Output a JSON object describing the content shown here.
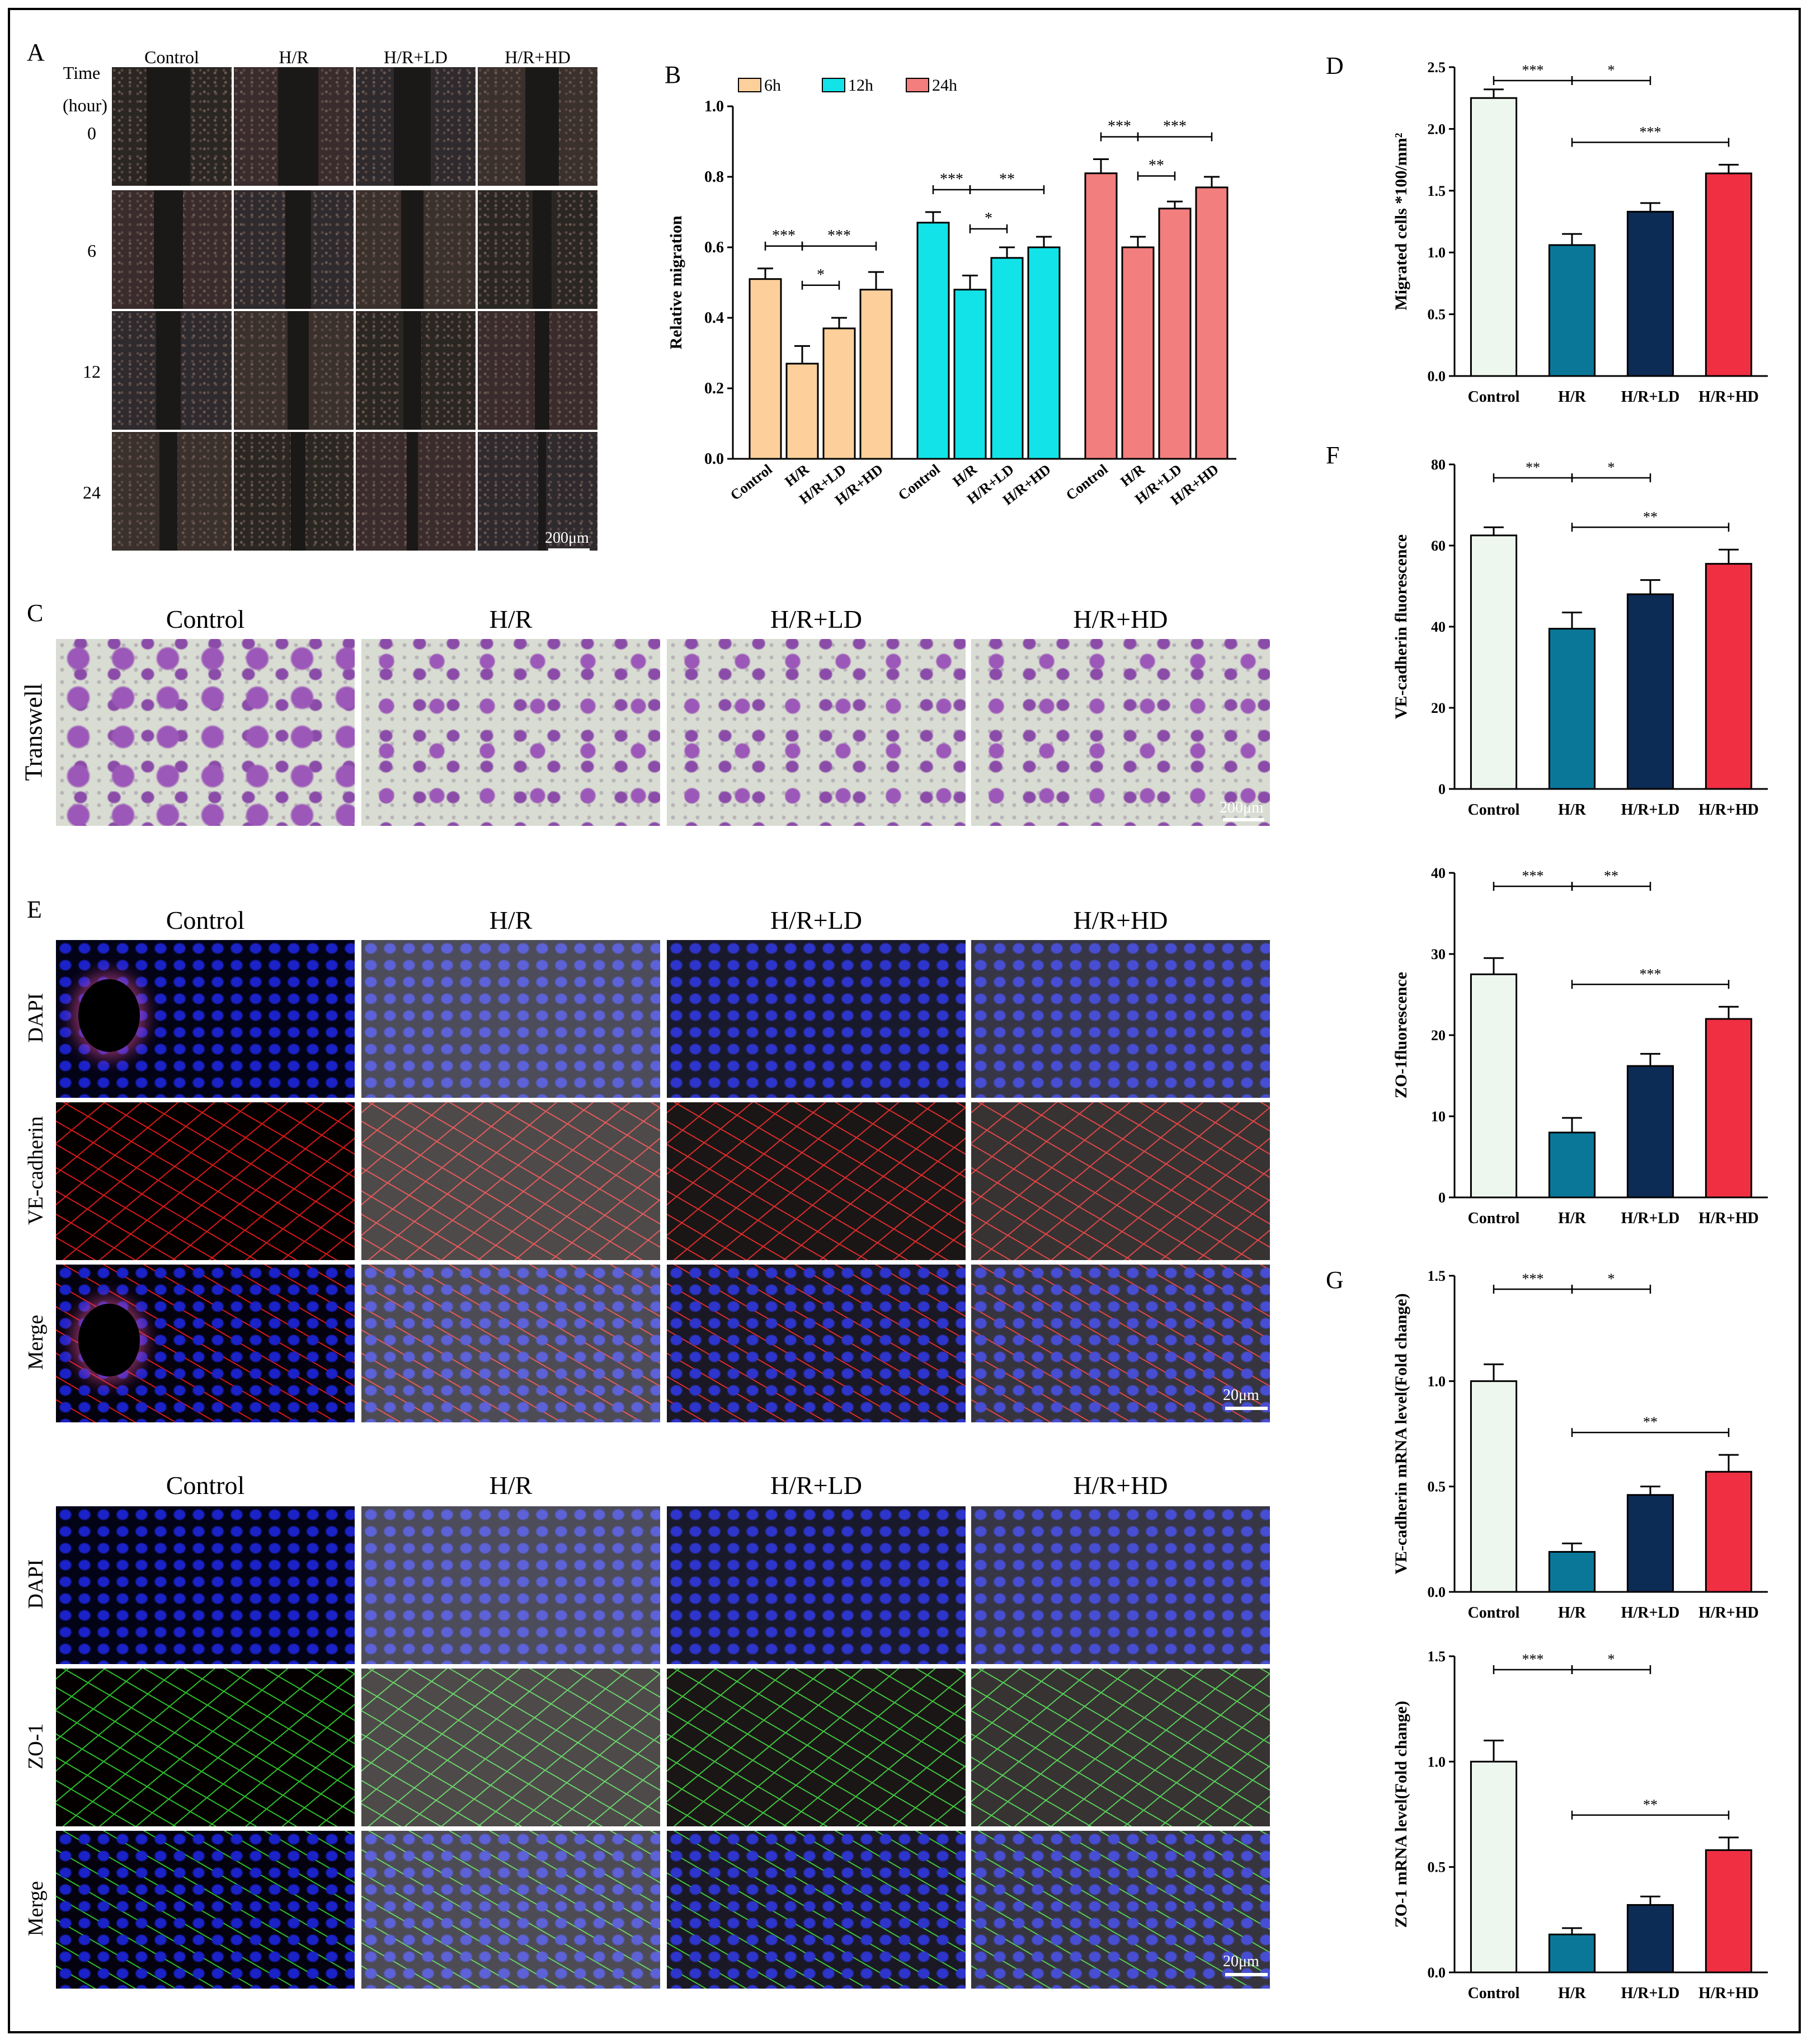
{
  "panels": {
    "A": "A",
    "B": "B",
    "C": "C",
    "D": "D",
    "E": "E",
    "F": "F",
    "G": "G"
  },
  "groups": [
    "Control",
    "H/R",
    "H/R+LD",
    "H/R+HD"
  ],
  "panel_a": {
    "time_label": "Time",
    "hour_label": "(hour)",
    "rows": [
      "0",
      "6",
      "12",
      "24"
    ],
    "scale": "200μm"
  },
  "panel_c": {
    "row_label": "Transwell",
    "scale": "200μm"
  },
  "panel_e": {
    "row_labels_top": [
      "DAPI",
      "VE-cadherin",
      "Merge"
    ],
    "row_labels_bottom": [
      "DAPI",
      "ZO-1",
      "Merge"
    ],
    "scale": "20μm",
    "colors": {
      "dapi": "#1a22c8",
      "vecad": "#c81414",
      "zo1": "#1fa31f",
      "dark": "#000000"
    }
  },
  "wound_colors": [
    "#2a2622",
    "#3a2c2c",
    "#2e2a2e",
    "#3a302c"
  ],
  "bar_colors": {
    "control": "#eef7ee",
    "hr": "#0a7799",
    "ld": "#0c2b55",
    "hd": "#f02f42",
    "b6": "#fccf9b",
    "b12": "#12e3e8",
    "b24": "#f27e7d"
  },
  "chart_data": [
    {
      "id": "B",
      "type": "bar",
      "ylabel": "Relative migration",
      "ylim": [
        0,
        1.0
      ],
      "yticks": [
        "0.0",
        "0.2",
        "0.4",
        "0.6",
        "0.8",
        "1.0"
      ],
      "categories": [
        "Control",
        "H/R",
        "H/R+LD",
        "H/R+HD"
      ],
      "legend": "top",
      "series": [
        {
          "name": "6h",
          "values": [
            0.51,
            0.27,
            0.37,
            0.48
          ],
          "errors": [
            0.03,
            0.05,
            0.03,
            0.05
          ],
          "color": "#fccf9b"
        },
        {
          "name": "12h",
          "values": [
            0.67,
            0.48,
            0.57,
            0.6
          ],
          "errors": [
            0.03,
            0.04,
            0.03,
            0.03
          ],
          "color": "#12e3e8"
        },
        {
          "name": "24h",
          "values": [
            0.81,
            0.6,
            0.71,
            0.77
          ],
          "errors": [
            0.04,
            0.03,
            0.02,
            0.03
          ],
          "color": "#f27e7d"
        }
      ],
      "significance": [
        {
          "label": "***",
          "group": 0
        },
        {
          "label": "***",
          "group": 0
        },
        {
          "label": "*",
          "group": 0
        },
        {
          "label": "***",
          "group": 1
        },
        {
          "label": "**",
          "group": 1
        },
        {
          "label": "*",
          "group": 1
        },
        {
          "label": "***",
          "group": 2
        },
        {
          "label": "***",
          "group": 2
        },
        {
          "label": "**",
          "group": 2
        }
      ]
    },
    {
      "id": "D",
      "type": "bar",
      "ylabel": "Migrated cells *100/mm²",
      "ylim": [
        0,
        2.5
      ],
      "yticks": [
        "0.0",
        "0.5",
        "1.0",
        "1.5",
        "2.0",
        "2.5"
      ],
      "categories": [
        "Control",
        "H/R",
        "H/R+LD",
        "H/R+HD"
      ],
      "values": [
        2.25,
        1.06,
        1.33,
        1.64
      ],
      "errors": [
        0.07,
        0.09,
        0.07,
        0.07
      ],
      "significance": [
        {
          "label": "***",
          "from": 0,
          "to": 1,
          "level": 0
        },
        {
          "label": "*",
          "from": 1,
          "to": 2,
          "level": 0
        },
        {
          "label": "***",
          "from": 1,
          "to": 3,
          "level": 1
        }
      ]
    },
    {
      "id": "F1",
      "type": "bar",
      "ylabel": "VE-cadherin fluorescence",
      "ylim": [
        0,
        80
      ],
      "yticks": [
        "0",
        "20",
        "40",
        "60",
        "80"
      ],
      "categories": [
        "Control",
        "H/R",
        "H/R+LD",
        "H/R+HD"
      ],
      "values": [
        62.5,
        39.5,
        48.0,
        55.5
      ],
      "errors": [
        2.0,
        4.0,
        3.5,
        3.5
      ],
      "significance": [
        {
          "label": "**",
          "from": 0,
          "to": 1,
          "level": 0
        },
        {
          "label": "*",
          "from": 1,
          "to": 2,
          "level": 0
        },
        {
          "label": "**",
          "from": 1,
          "to": 3,
          "level": 1
        }
      ]
    },
    {
      "id": "F2",
      "type": "bar",
      "ylabel": "ZO-1fluorescence",
      "ylim": [
        0,
        40
      ],
      "yticks": [
        "0",
        "10",
        "20",
        "30",
        "40"
      ],
      "categories": [
        "Control",
        "H/R",
        "H/R+LD",
        "H/R+HD"
      ],
      "values": [
        27.5,
        8.0,
        16.2,
        22.0
      ],
      "errors": [
        2.0,
        1.8,
        1.5,
        1.5
      ],
      "significance": [
        {
          "label": "***",
          "from": 0,
          "to": 1,
          "level": 0
        },
        {
          "label": "**",
          "from": 1,
          "to": 2,
          "level": 0
        },
        {
          "label": "***",
          "from": 1,
          "to": 3,
          "level": 1
        }
      ]
    },
    {
      "id": "G1",
      "type": "bar",
      "ylabel": "VE-cadherin mRNA level(Fold change)",
      "ylim": [
        0,
        1.5
      ],
      "yticks": [
        "0.0",
        "0.5",
        "1.0",
        "1.5"
      ],
      "categories": [
        "Control",
        "H/R",
        "H/R+LD",
        "H/R+HD"
      ],
      "values": [
        1.0,
        0.19,
        0.46,
        0.57
      ],
      "errors": [
        0.08,
        0.04,
        0.04,
        0.08
      ],
      "significance": [
        {
          "label": "***",
          "from": 0,
          "to": 1,
          "level": 0
        },
        {
          "label": "*",
          "from": 1,
          "to": 2,
          "level": 0
        },
        {
          "label": "**",
          "from": 1,
          "to": 3,
          "level": 1
        }
      ]
    },
    {
      "id": "G2",
      "type": "bar",
      "ylabel": "ZO-1 mRNA level(Fold change)",
      "ylim": [
        0,
        1.5
      ],
      "yticks": [
        "0.0",
        "0.5",
        "1.0",
        "1.5"
      ],
      "categories": [
        "Control",
        "H/R",
        "H/R+LD",
        "H/R+HD"
      ],
      "values": [
        1.0,
        0.18,
        0.32,
        0.58
      ],
      "errors": [
        0.1,
        0.03,
        0.04,
        0.06
      ],
      "significance": [
        {
          "label": "***",
          "from": 0,
          "to": 1,
          "level": 0
        },
        {
          "label": "*",
          "from": 1,
          "to": 2,
          "level": 0
        },
        {
          "label": "**",
          "from": 1,
          "to": 3,
          "level": 1
        }
      ]
    }
  ]
}
